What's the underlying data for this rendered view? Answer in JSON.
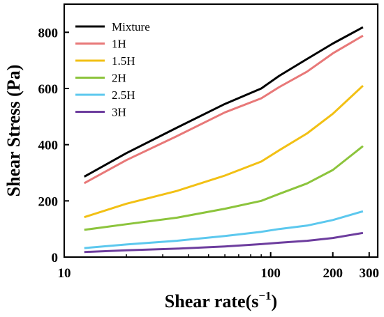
{
  "chart_data": {
    "type": "line",
    "xlabel": "Shear rate(s",
    "xlabel_sup": "−1",
    "xlabel_close": ")",
    "ylabel": "Shear Stress (Pa)",
    "xscale": "log",
    "xlim": [
      10,
      330
    ],
    "ylim": [
      0,
      900
    ],
    "xticks": [
      10,
      100,
      200,
      300
    ],
    "xtick_labels": [
      "10",
      "100",
      "200",
      "300"
    ],
    "yticks": [
      0,
      200,
      400,
      600,
      800
    ],
    "ytick_labels": [
      "0",
      "200",
      "400",
      "600",
      "800"
    ],
    "legend_position": "top-left",
    "grid": false,
    "series": [
      {
        "name": "Mixture",
        "color": "#000000",
        "x": [
          12.5,
          20,
          35,
          60,
          90,
          110,
          150,
          200,
          280
        ],
        "y": [
          286,
          370,
          460,
          545,
          600,
          645,
          705,
          760,
          818
        ]
      },
      {
        "name": "1H",
        "color": "#e87878",
        "x": [
          12.5,
          20,
          35,
          60,
          90,
          110,
          150,
          200,
          280
        ],
        "y": [
          263,
          345,
          430,
          515,
          565,
          605,
          660,
          725,
          788
        ]
      },
      {
        "name": "1.5H",
        "color": "#f2c014",
        "x": [
          12.5,
          20,
          35,
          60,
          90,
          110,
          150,
          200,
          280
        ],
        "y": [
          142,
          190,
          235,
          290,
          340,
          380,
          440,
          510,
          610
        ]
      },
      {
        "name": "2H",
        "color": "#8cc43c",
        "x": [
          12.5,
          20,
          35,
          60,
          90,
          110,
          150,
          200,
          280
        ],
        "y": [
          97,
          117,
          140,
          172,
          200,
          225,
          262,
          310,
          395
        ]
      },
      {
        "name": "2.5H",
        "color": "#5cc8ee",
        "x": [
          12.5,
          20,
          35,
          60,
          90,
          110,
          150,
          200,
          280
        ],
        "y": [
          32,
          45,
          58,
          75,
          90,
          100,
          112,
          132,
          163
        ]
      },
      {
        "name": "3H",
        "color": "#6d3d9e",
        "x": [
          12.5,
          20,
          35,
          60,
          90,
          110,
          150,
          200,
          280
        ],
        "y": [
          18,
          24,
          30,
          38,
          46,
          51,
          58,
          68,
          86
        ]
      }
    ]
  }
}
